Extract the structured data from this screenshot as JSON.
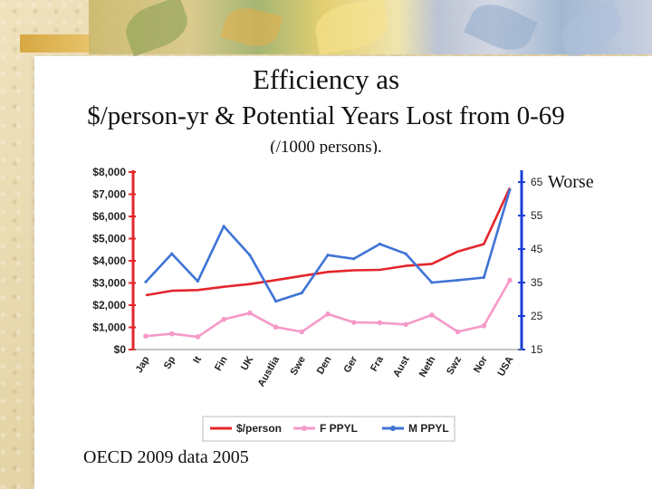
{
  "slide": {
    "title_line1": "Efficiency as",
    "title_line2": "$/person-yr & Potential Years Lost from 0-69",
    "subtitle": "(/1000 persons).",
    "annotation_worse": "Worse",
    "footer_note": "OECD 2009 data 2005"
  },
  "colors": {
    "cost": "#e3262b",
    "female": "#f59ac8",
    "male": "#3f74d6",
    "right_axis": "#1a3fd8",
    "left_axis": "#e3262b"
  },
  "chart_data": {
    "type": "line",
    "title": "",
    "categories": [
      "Jap",
      "Sp",
      "It",
      "Fin",
      "UK",
      "Austlia",
      "Swe",
      "Den",
      "Ger",
      "Fra",
      "Aust",
      "Neth",
      "Swz",
      "Nor",
      "USA"
    ],
    "y_left": {
      "ylim": [
        0,
        8000
      ],
      "ticks": [
        0,
        1000,
        2000,
        3000,
        4000,
        5000,
        6000,
        7000,
        8000
      ],
      "tick_labels": [
        "$0",
        "$1,000",
        "$2,000",
        "$3,000",
        "$4,000",
        "$5,000",
        "$6,000",
        "$7,000",
        "$8,000"
      ]
    },
    "y_right": {
      "ylim": [
        15,
        68
      ],
      "ticks": [
        15,
        25,
        35,
        45,
        55,
        65
      ],
      "tick_labels": [
        "15",
        "25",
        "35",
        "45",
        "55",
        "65"
      ]
    },
    "series": [
      {
        "name": "$/person",
        "axis": "left",
        "values": [
          2450,
          2650,
          2680,
          2830,
          2950,
          3130,
          3320,
          3500,
          3570,
          3590,
          3770,
          3860,
          4420,
          4750,
          7290
        ]
      },
      {
        "name": "F PPYL",
        "axis": "right",
        "values": [
          19,
          19.7,
          18.8,
          24,
          25.9,
          21.7,
          20.3,
          25.6,
          23.1,
          23,
          22.5,
          25.3,
          20.3,
          22.1,
          35.7
        ]
      },
      {
        "name": "M PPYL",
        "axis": "right",
        "values": [
          35.2,
          43.6,
          35.4,
          51.8,
          43.2,
          29.4,
          31.9,
          43.2,
          42.1,
          46.5,
          43.6,
          35,
          35.7,
          36.5,
          62.7
        ]
      }
    ],
    "legend": {
      "position": "bottom",
      "entries": [
        "$/person",
        "F PPYL",
        "M PPYL"
      ]
    }
  }
}
